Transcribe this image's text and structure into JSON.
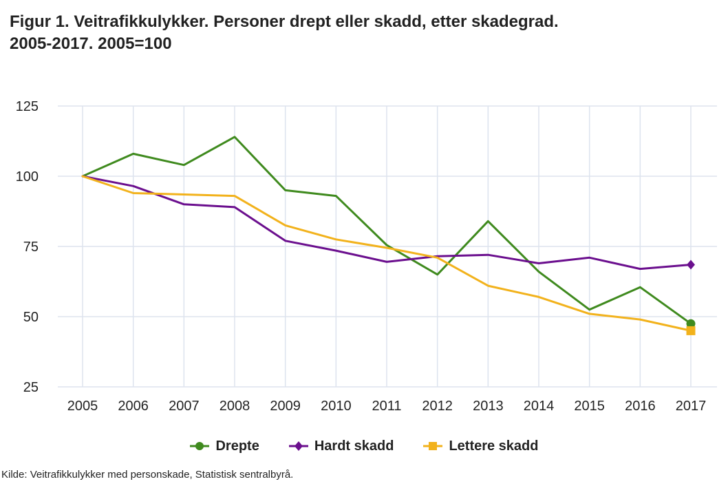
{
  "title": {
    "line1": "Figur 1. Veitrafikkulykker. Personer drept eller skadd, etter skadegrad.",
    "line2": "2005-2017. 2005=100"
  },
  "source": "Kilde: Veitrafikkulykker med personskade, Statistisk sentralbyrå.",
  "chart_data": {
    "type": "line",
    "title": "Figur 1. Veitrafikkulykker. Personer drept eller skadd, etter skadegrad. 2005-2017. 2005=100",
    "xlabel": "",
    "ylabel": "",
    "x": [
      "2005",
      "2006",
      "2007",
      "2008",
      "2009",
      "2010",
      "2011",
      "2012",
      "2013",
      "2014",
      "2015",
      "2016",
      "2017"
    ],
    "ylim": [
      25,
      125
    ],
    "yticks": [
      25,
      50,
      75,
      100,
      125
    ],
    "grid": true,
    "legend_position": "bottom",
    "series": [
      {
        "name": "Drepte",
        "color": "#3f8a1e",
        "marker": "circle",
        "values": [
          100,
          108,
          104,
          114,
          95,
          93,
          75.5,
          65,
          84,
          66,
          52.5,
          60.5,
          47.5
        ]
      },
      {
        "name": "Hardt skadd",
        "color": "#6b0f8e",
        "marker": "diamond",
        "values": [
          100,
          96.5,
          90,
          89,
          77,
          73.5,
          69.5,
          71.5,
          72,
          69,
          71,
          67,
          68.5
        ]
      },
      {
        "name": "Lettere skadd",
        "color": "#f2b21c",
        "marker": "square",
        "values": [
          100,
          94,
          93.5,
          93,
          82.5,
          77.5,
          74.5,
          71,
          61,
          57,
          51,
          49,
          45
        ]
      }
    ]
  }
}
